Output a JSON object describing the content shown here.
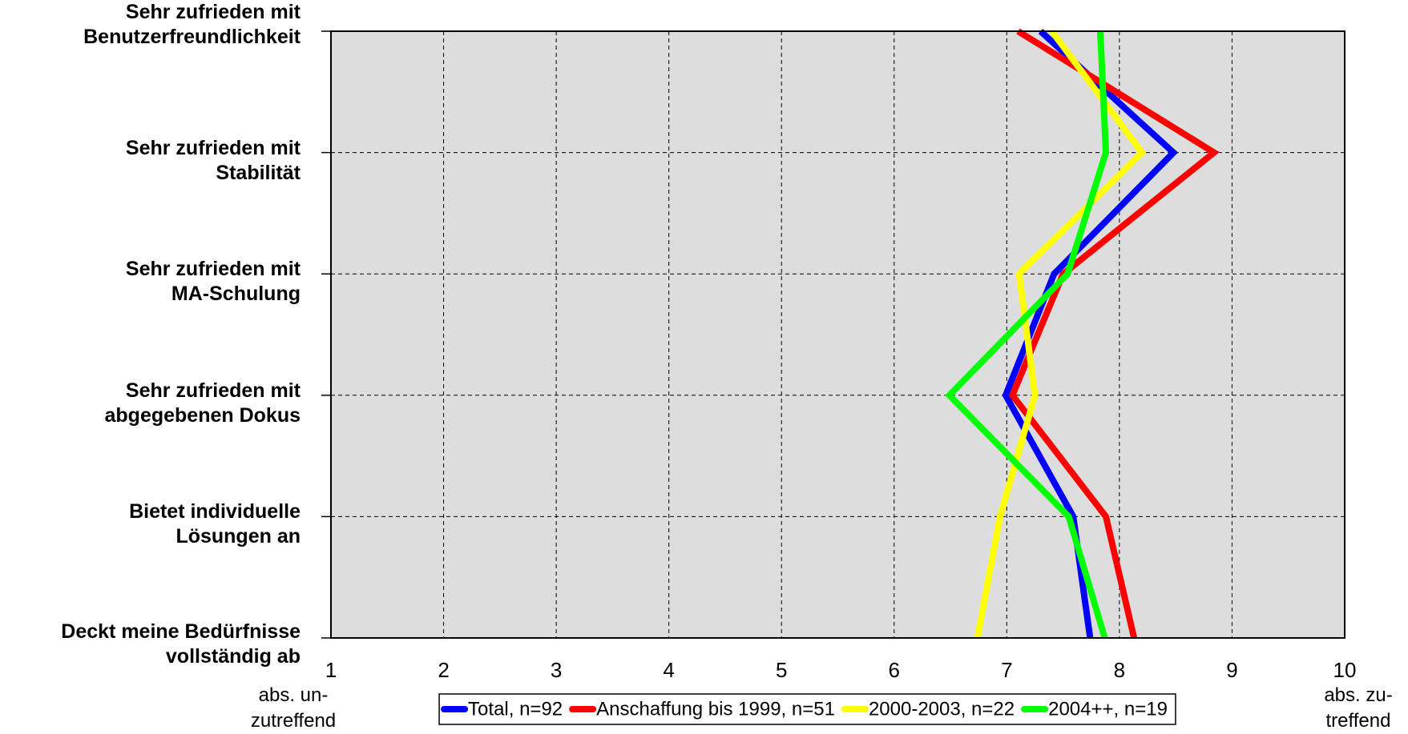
{
  "chart_data": {
    "type": "line",
    "categories": [
      "Sehr zufrieden mit\nBenutzerfreundlichkeit",
      "Sehr zufrieden mit\nStabilität",
      "Sehr zufrieden mit\nMA-Schulung",
      "Sehr zufrieden mit\nabgegebenen Dokus",
      "Bietet individuelle\nLösungen an",
      "Deckt meine Bedürfnisse\nvollständig ab"
    ],
    "series": [
      {
        "name": "Total, n=92",
        "color": "#0000ff",
        "values": [
          7.3,
          8.48,
          7.42,
          6.99,
          7.59,
          7.74
        ]
      },
      {
        "name": "Anschaffung bis 1999, n=51",
        "color": "#ff0000",
        "values": [
          7.1,
          8.84,
          7.5,
          7.05,
          7.88,
          8.13
        ]
      },
      {
        "name": "2000-2003, n=22",
        "color": "#ffff00",
        "values": [
          7.4,
          8.2,
          7.11,
          7.25,
          6.94,
          6.74
        ]
      },
      {
        "name": "2004++, n=19",
        "color": "#00ff00",
        "values": [
          7.83,
          7.88,
          7.54,
          6.49,
          7.55,
          7.87
        ]
      }
    ],
    "xlim": [
      1,
      10
    ],
    "xticks": [
      1,
      2,
      3,
      4,
      5,
      6,
      7,
      8,
      9,
      10
    ],
    "grid": true,
    "annotations": [
      "abs. un-\nzutreffend",
      "abs. zu-\ntreffend"
    ],
    "legend": "bottom"
  }
}
